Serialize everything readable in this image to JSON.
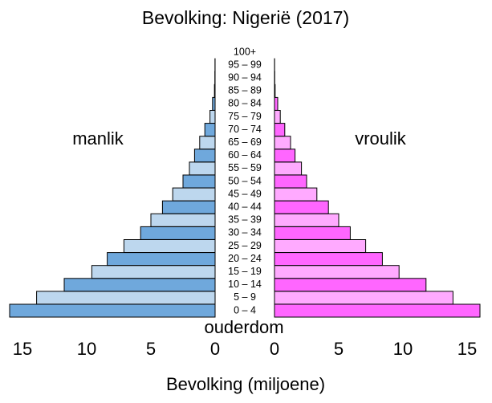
{
  "chart_data": {
    "type": "pyramid",
    "title": "Bevolking: Nigerië (2017)",
    "x_label": "Bevolking (miljoene)",
    "category_label": "ouderdom",
    "categories": [
      "0 – 4",
      "5 – 9",
      "10 – 14",
      "15 – 19",
      "20 – 24",
      "25 – 29",
      "30 – 34",
      "35 – 39",
      "40 – 44",
      "45 – 49",
      "50 – 54",
      "55 – 59",
      "60 – 64",
      "65 – 69",
      "70 – 74",
      "75 – 79",
      "80 – 84",
      "85 – 89",
      "90 – 94",
      "95 – 99",
      "100+"
    ],
    "series": [
      {
        "name": "manlik",
        "side": "left",
        "colors": [
          "#6fa8dc",
          "#bdd7ee"
        ],
        "values": [
          16.0,
          13.9,
          11.75,
          9.6,
          8.4,
          7.1,
          5.8,
          5.0,
          4.1,
          3.3,
          2.5,
          2.0,
          1.6,
          1.2,
          0.8,
          0.4,
          0.2,
          0.05,
          0.02,
          0.01,
          0
        ]
      },
      {
        "name": "vroulik",
        "side": "right",
        "colors": [
          "#ff66ff",
          "#ffaaff"
        ],
        "values": [
          16.0,
          13.9,
          11.8,
          9.7,
          8.4,
          7.1,
          5.9,
          5.0,
          4.2,
          3.3,
          2.5,
          2.1,
          1.6,
          1.25,
          0.8,
          0.45,
          0.25,
          0.05,
          0.02,
          0.01,
          0
        ]
      }
    ],
    "xlim": [
      0,
      16
    ],
    "xticks": [
      0,
      5,
      10,
      15
    ]
  }
}
